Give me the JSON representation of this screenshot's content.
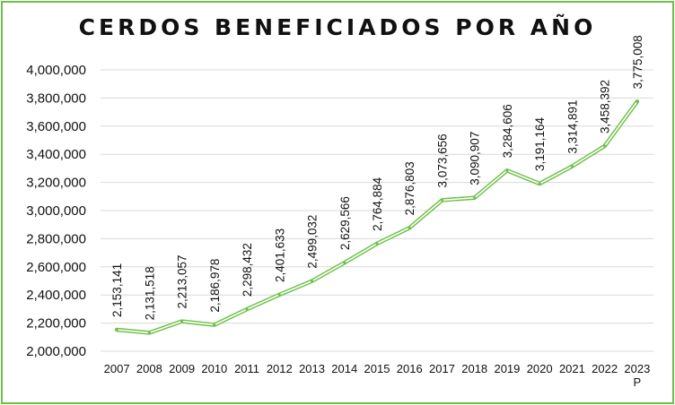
{
  "chart_data": {
    "type": "line",
    "title": "CERDOS BENEFICIADOS POR AÑO",
    "xlabel": "",
    "ylabel": "",
    "ylim": [
      2000000,
      4000000
    ],
    "yticks": [
      "2,000,000",
      "2,200,000",
      "2,400,000",
      "2,600,000",
      "2,800,000",
      "3,000,000",
      "3,200,000",
      "3,400,000",
      "3,600,000",
      "3,800,000",
      "4,000,000"
    ],
    "categories": [
      [
        "2007"
      ],
      [
        "2008"
      ],
      [
        "2009"
      ],
      [
        "2010"
      ],
      [
        "2011"
      ],
      [
        "2012"
      ],
      [
        "2013"
      ],
      [
        "2014"
      ],
      [
        "2015"
      ],
      [
        "2016"
      ],
      [
        "2017"
      ],
      [
        "2018"
      ],
      [
        "2019"
      ],
      [
        "2020"
      ],
      [
        "2021"
      ],
      [
        "2022"
      ],
      [
        "2023",
        "P"
      ]
    ],
    "values": [
      2153141,
      2131518,
      2213057,
      2186978,
      2298432,
      2401633,
      2499032,
      2629566,
      2764884,
      2876803,
      3073656,
      3090907,
      3284606,
      3191164,
      3314891,
      3458392,
      3775008
    ],
    "value_labels": [
      "2,153,141",
      "2,131,518",
      "2,213,057",
      "2,186,978",
      "2,298,432",
      "2,401,633",
      "2,499,032",
      "2,629,566",
      "2,764,884",
      "2,876,803",
      "3,073,656",
      "3,090,907",
      "3,284,606",
      "3,191,164",
      "3,314,891",
      "3,458,392",
      "3,775,008"
    ],
    "grid": true,
    "legend": "none",
    "colors": {
      "line": "#6fc04a",
      "line_inner": "#ffffff",
      "grid": "#d9d9d9",
      "frame": "#6fc04a"
    }
  }
}
